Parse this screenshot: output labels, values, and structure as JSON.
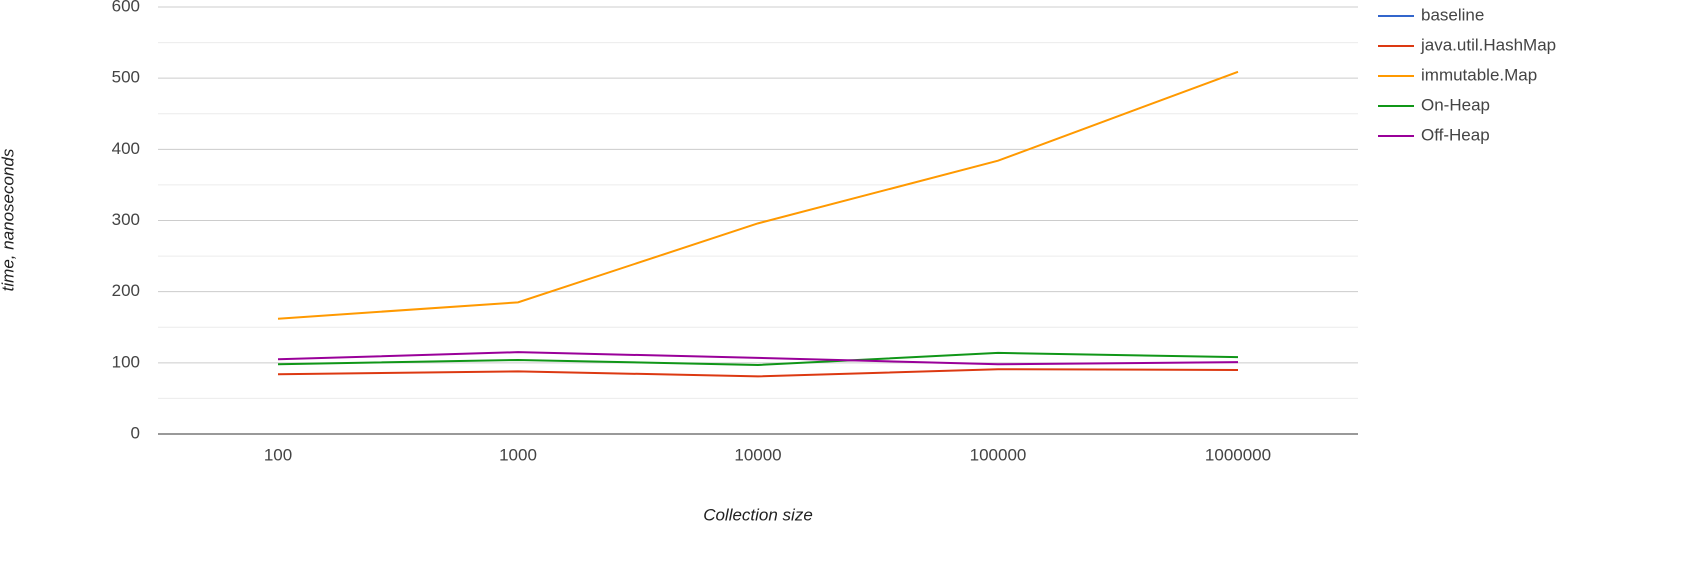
{
  "chart_data": {
    "type": "line",
    "xlabel": "Collection size",
    "ylabel": "time, nanoseconds",
    "categories": [
      "100",
      "1000",
      "10000",
      "100000",
      "1000000"
    ],
    "series": [
      {
        "name": "baseline",
        "color": "#3366cc",
        "values": [
          null,
          null,
          null,
          null,
          null
        ]
      },
      {
        "name": "java.util.HashMap",
        "color": "#dc3912",
        "values": [
          84,
          88,
          81,
          91,
          90
        ]
      },
      {
        "name": "immutable.Map",
        "color": "#ff9900",
        "values": [
          162,
          185,
          296,
          384,
          509
        ]
      },
      {
        "name": "On-Heap",
        "color": "#109618",
        "values": [
          98,
          104,
          97,
          114,
          108
        ]
      },
      {
        "name": "Off-Heap",
        "color": "#990099",
        "values": [
          105,
          115,
          107,
          98,
          101
        ]
      }
    ],
    "ylim": [
      0,
      600
    ],
    "yticks": [
      0,
      100,
      200,
      300,
      400,
      500,
      600
    ],
    "yminorticks": [
      50,
      150,
      250,
      350,
      450,
      550
    ],
    "grid": true,
    "legend": "right"
  }
}
